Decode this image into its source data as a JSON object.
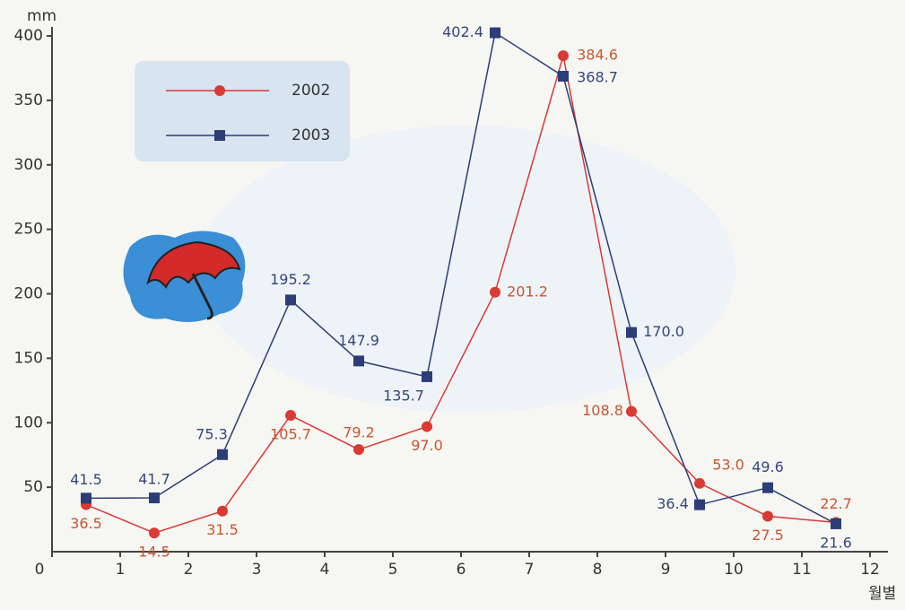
{
  "chart_data": {
    "type": "line",
    "y_label": "mm",
    "x_label": "월별",
    "x": [
      0.5,
      1.5,
      2.5,
      3.5,
      4.5,
      5.5,
      6.5,
      7.5,
      8.5,
      9.5,
      10.5,
      11.5
    ],
    "series": [
      {
        "name": "2002",
        "color": "#d93a34",
        "marker": "circle",
        "values": [
          36.5,
          14.5,
          31.5,
          105.7,
          79.2,
          97.0,
          201.2,
          384.6,
          108.8,
          53.0,
          27.5,
          22.7
        ],
        "value_labels": [
          "36.5",
          "14.5",
          "31.5",
          "105.7",
          "79.2",
          "97.0",
          "201.2",
          "384.6",
          "108.8",
          "53.0",
          "27.5",
          "22.7"
        ]
      },
      {
        "name": "2003",
        "color": "#2c3d78",
        "marker": "square",
        "values": [
          41.5,
          41.7,
          75.3,
          195.2,
          147.9,
          135.7,
          402.4,
          368.7,
          170.0,
          36.4,
          49.6,
          21.6
        ],
        "value_labels": [
          "41.5",
          "41.7",
          "75.3",
          "195.2",
          "147.9",
          "135.7",
          "402.4",
          "368.7",
          "170.0",
          "36.4",
          "49.6",
          "21.6"
        ]
      }
    ],
    "xlim": [
      0,
      12
    ],
    "xticks": [
      0,
      1,
      2,
      3,
      4,
      5,
      6,
      7,
      8,
      9,
      10,
      11,
      12
    ],
    "ylim": [
      0,
      400
    ],
    "yticks": [
      50,
      100,
      150,
      200,
      250,
      300,
      350,
      400
    ],
    "legend": "upper-left"
  }
}
